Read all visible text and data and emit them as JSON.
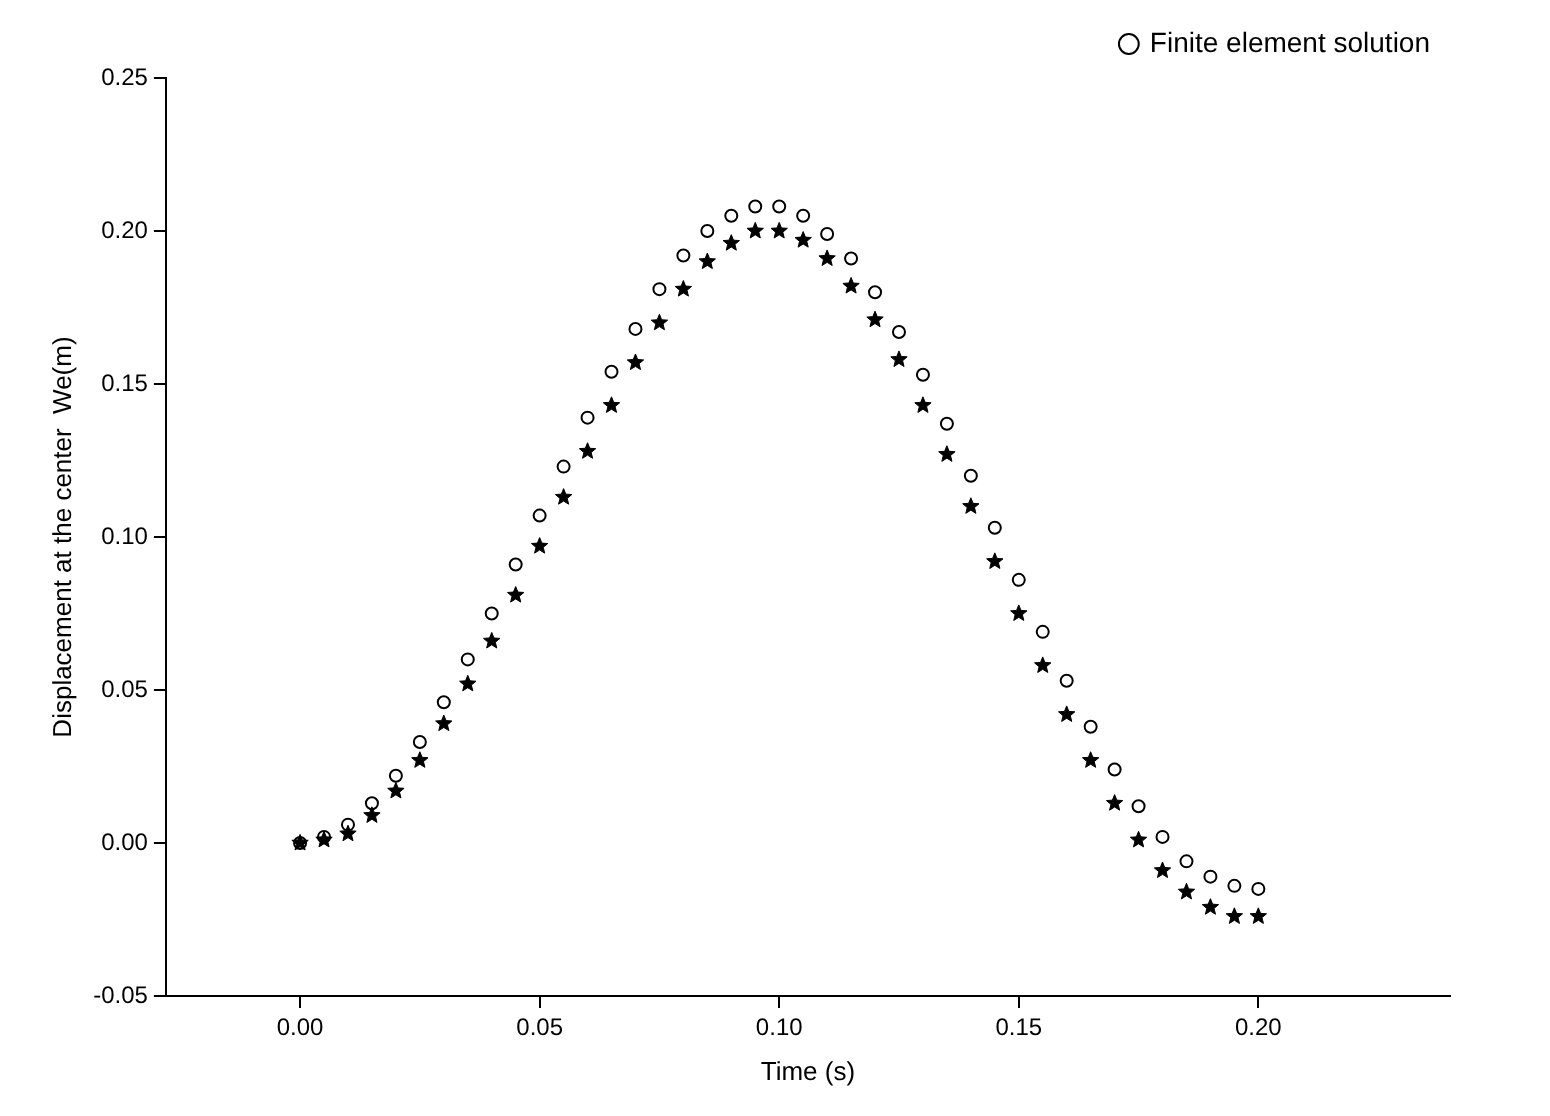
{
  "chart_data": {
    "type": "scatter",
    "xlabel": "Time (s)",
    "ylabel": "Displacement at the center  We(m)",
    "xlim": [
      -0.028,
      0.24
    ],
    "ylim": [
      -0.05,
      0.25
    ],
    "xticks": [
      {
        "value": 0,
        "label": "0.00"
      },
      {
        "value": 0.05,
        "label": "0.05"
      },
      {
        "value": 0.1,
        "label": "0.10"
      },
      {
        "value": 0.15,
        "label": "0.15"
      },
      {
        "value": 0.2,
        "label": "0.20"
      }
    ],
    "yticks": [
      {
        "value": -0.05,
        "label": "-0.05"
      },
      {
        "value": 0,
        "label": "0.00"
      },
      {
        "value": 0.05,
        "label": "0.05"
      },
      {
        "value": 0.1,
        "label": "0.10"
      },
      {
        "value": 0.15,
        "label": "0.15"
      },
      {
        "value": 0.2,
        "label": "0.20"
      },
      {
        "value": 0.25,
        "label": "0.25"
      }
    ],
    "x": [
      0,
      0.005,
      0.01,
      0.015,
      0.02,
      0.025,
      0.03,
      0.035,
      0.04,
      0.045,
      0.05,
      0.055,
      0.06,
      0.065,
      0.07,
      0.075,
      0.08,
      0.085,
      0.09,
      0.095,
      0.1,
      0.105,
      0.11,
      0.115,
      0.12,
      0.125,
      0.13,
      0.135,
      0.14,
      0.145,
      0.15,
      0.155,
      0.16,
      0.165,
      0.17,
      0.175,
      0.18,
      0.185,
      0.19,
      0.195,
      0.2
    ],
    "grid": false,
    "legend": "top right",
    "series": [
      {
        "name": "Finite element solution",
        "color": "#000000",
        "marker": "circle",
        "values": [
          0,
          0.002,
          0.006,
          0.013,
          0.022,
          0.033,
          0.046,
          0.06,
          0.075,
          0.091,
          0.107,
          0.123,
          0.139,
          0.154,
          0.168,
          0.181,
          0.192,
          0.2,
          0.205,
          0.208,
          0.208,
          0.205,
          0.199,
          0.191,
          0.18,
          0.167,
          0.153,
          0.137,
          0.12,
          0.103,
          0.086,
          0.069,
          0.053,
          0.038,
          0.024,
          0.012,
          0.002,
          -0.006,
          -0.011,
          -0.014,
          -0.015
        ]
      },
      {
        "color": "#000000",
        "marker": "star",
        "values": [
          0,
          0.001,
          0.003,
          0.009,
          0.017,
          0.027,
          0.039,
          0.052,
          0.066,
          0.081,
          0.097,
          0.113,
          0.128,
          0.143,
          0.157,
          0.17,
          0.181,
          0.19,
          0.196,
          0.2,
          0.2,
          0.197,
          0.191,
          0.182,
          0.171,
          0.158,
          0.143,
          0.127,
          0.11,
          0.092,
          0.075,
          0.058,
          0.042,
          0.027,
          0.013,
          0.001,
          -0.009,
          -0.016,
          -0.021,
          -0.024,
          -0.024
        ]
      }
    ]
  }
}
